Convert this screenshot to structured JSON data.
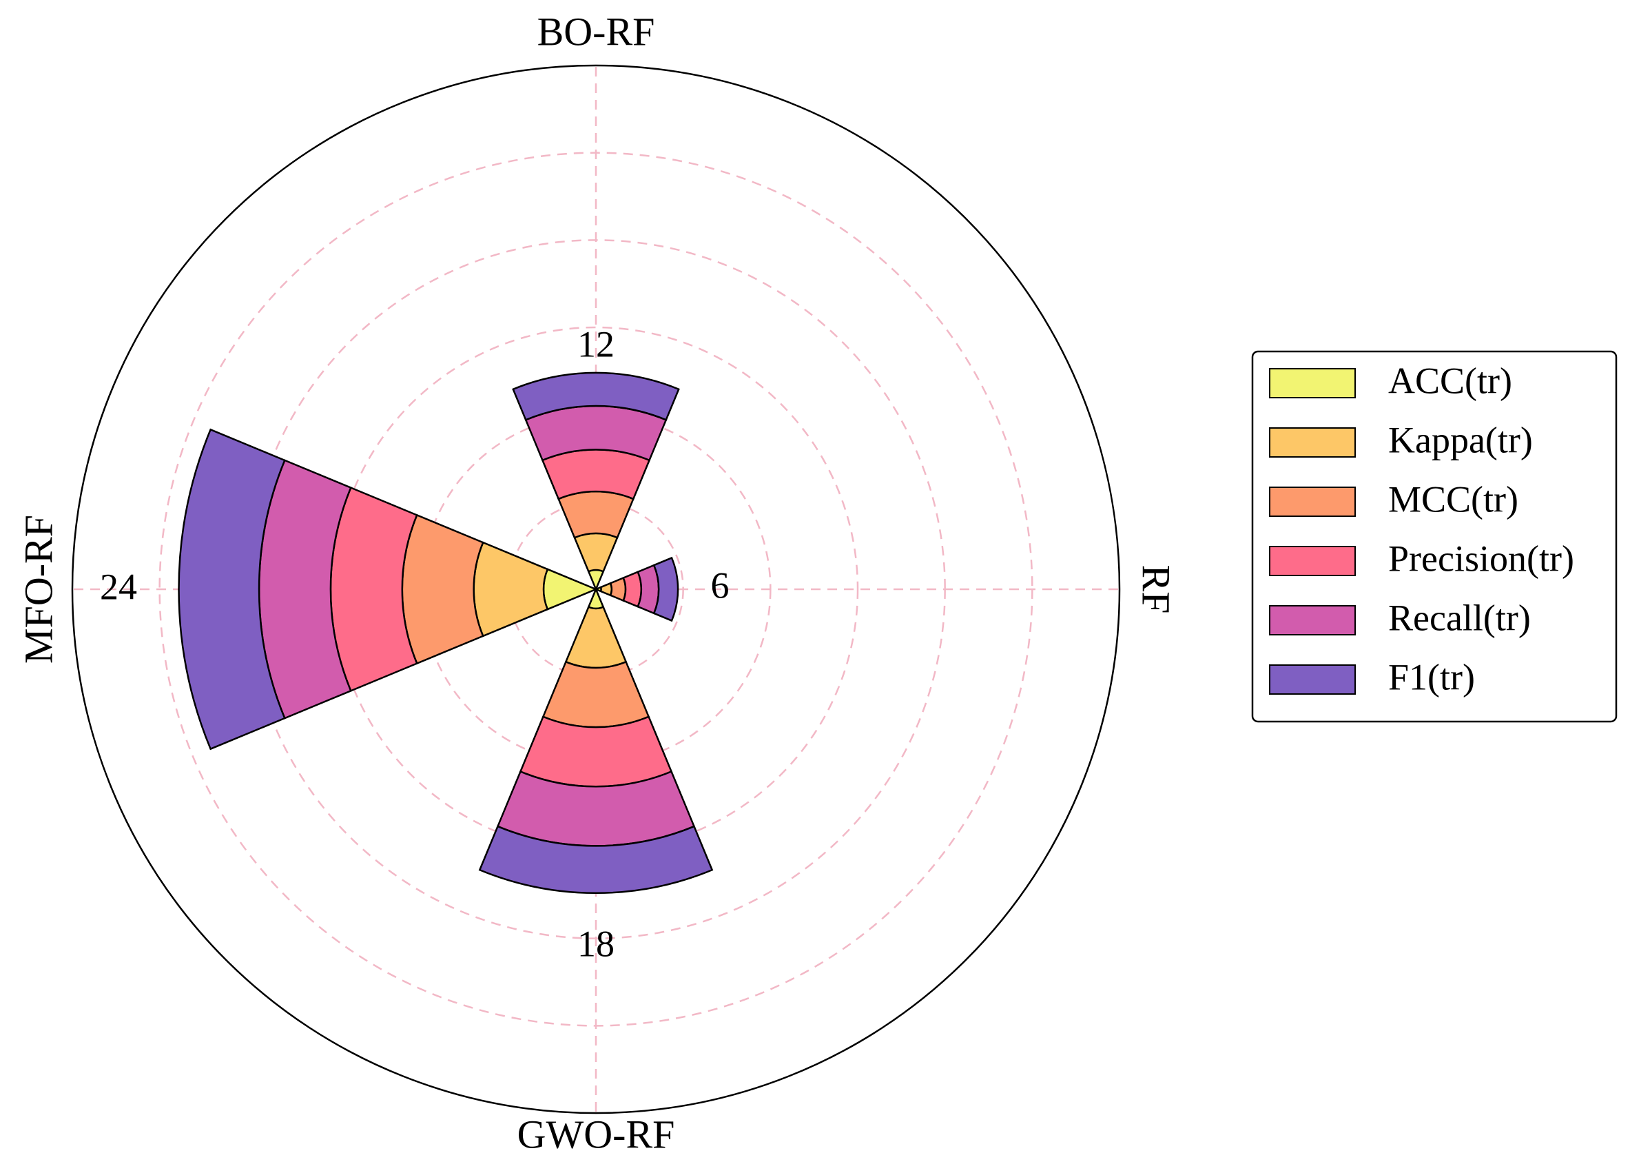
{
  "chart_data": {
    "type": "polar-bar",
    "categories": [
      "RF",
      "BO-RF",
      "MFO-RF",
      "GWO-RF"
    ],
    "category_angles_deg": [
      0,
      90,
      180,
      270
    ],
    "radial_ticks": [
      "6",
      "12",
      "18",
      "24"
    ],
    "rmax": 30,
    "grid": true,
    "legend_position": "right",
    "series": [
      {
        "name": "ACC(tr)",
        "color": "#f2f472",
        "values": [
          1,
          1,
          1,
          1
        ]
      },
      {
        "name": "Kappa(tr)",
        "color": "#fdc767",
        "values": [
          1,
          1,
          1,
          1
        ]
      },
      {
        "name": "MCC(tr)",
        "color": "#fd9a6c",
        "values": [
          1,
          1,
          1,
          1
        ]
      },
      {
        "name": "Precision(tr)",
        "color": "#fe6c8a",
        "values": [
          1,
          1,
          1,
          1
        ]
      },
      {
        "name": "Recall(tr)",
        "color": "#d25cad",
        "values": [
          1,
          1,
          1,
          1
        ]
      },
      {
        "name": "F1(tr)",
        "color": "#7f5fc2",
        "values": [
          1,
          1,
          1,
          1
        ]
      }
    ],
    "cumulative_radius": {
      "RF": [
        0.3,
        0.9,
        1.7,
        2.6,
        3.6,
        4.7
      ],
      "BO-RF": [
        1.1,
        3.2,
        5.6,
        8.0,
        10.5,
        12.4
      ],
      "MFO-RF": [
        3.0,
        7.0,
        11.1,
        15.2,
        19.3,
        23.9
      ],
      "GWO-RF": [
        1.1,
        4.5,
        7.9,
        11.3,
        14.7,
        17.4
      ]
    }
  }
}
